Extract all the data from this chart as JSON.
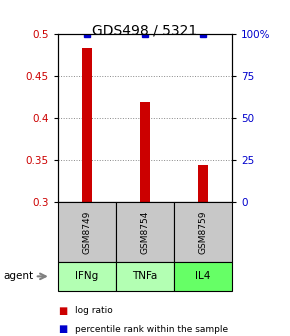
{
  "title": "GDS498 / 5321",
  "samples": [
    "GSM8749",
    "GSM8754",
    "GSM8759"
  ],
  "agents": [
    "IFNg",
    "TNFa",
    "IL4"
  ],
  "log_ratios": [
    0.483,
    0.418,
    0.343
  ],
  "percentile_ranks": [
    99.5,
    99.5,
    99.5
  ],
  "ylim_left": [
    0.3,
    0.5
  ],
  "ylim_right": [
    0,
    100
  ],
  "yticks_left": [
    0.3,
    0.35,
    0.4,
    0.45,
    0.5
  ],
  "yticks_right": [
    0,
    25,
    50,
    75,
    100
  ],
  "ytick_labels_left": [
    "0.3",
    "0.35",
    "0.4",
    "0.45",
    "0.5"
  ],
  "ytick_labels_right": [
    "0",
    "25",
    "50",
    "75",
    "100%"
  ],
  "bar_color": "#cc0000",
  "dot_color": "#0000cc",
  "sample_box_color": "#c8c8c8",
  "agent_colors": [
    "#b3ffb3",
    "#b3ffb3",
    "#66ff66"
  ],
  "title_fontsize": 10,
  "tick_fontsize": 7.5,
  "bar_width": 0.18,
  "grid_color": "#888888"
}
